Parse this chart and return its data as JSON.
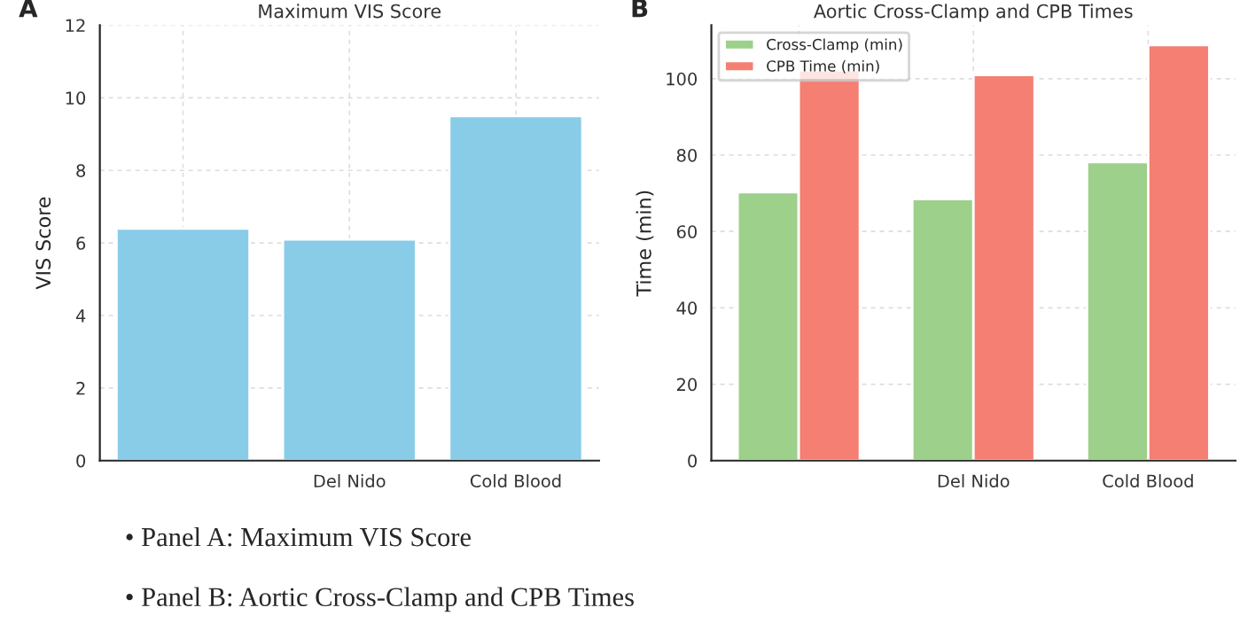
{
  "chart_data": [
    {
      "type": "bar",
      "title": "Maximum VIS Score",
      "ylabel": "VIS Score",
      "categories": [
        null,
        "Del Nido",
        "Cold Blood"
      ],
      "values": [
        6.4,
        6.1,
        9.5
      ],
      "color": "#89cce8",
      "ylim": [
        0,
        12
      ],
      "yticks": [
        0,
        2,
        4,
        6,
        8,
        10,
        12
      ],
      "grid": true,
      "legend": false,
      "annotations": [
        "A",
        "• Panel A: Maximum VIS Score"
      ]
    },
    {
      "type": "bar",
      "title": "Aortic Cross-Clamp and CPB Times",
      "ylabel": "Time (min)",
      "categories": [
        null,
        "Del Nido",
        "Cold Blood"
      ],
      "series": [
        {
          "name": "Cross-Clamp (min)",
          "color": "#9dd08a",
          "values": [
            70.3,
            68.5,
            78.2
          ]
        },
        {
          "name": "CPB Time (min)",
          "color": "#f47f72",
          "values": [
            102.2,
            101.0,
            108.8
          ]
        }
      ],
      "ylim": [
        0,
        114
      ],
      "yticks": [
        0,
        20,
        40,
        60,
        80,
        100
      ],
      "grid": true,
      "legend": "top left",
      "annotations": [
        "B",
        "• Panel B: Aortic Cross-Clamp and CPB Times"
      ]
    }
  ]
}
